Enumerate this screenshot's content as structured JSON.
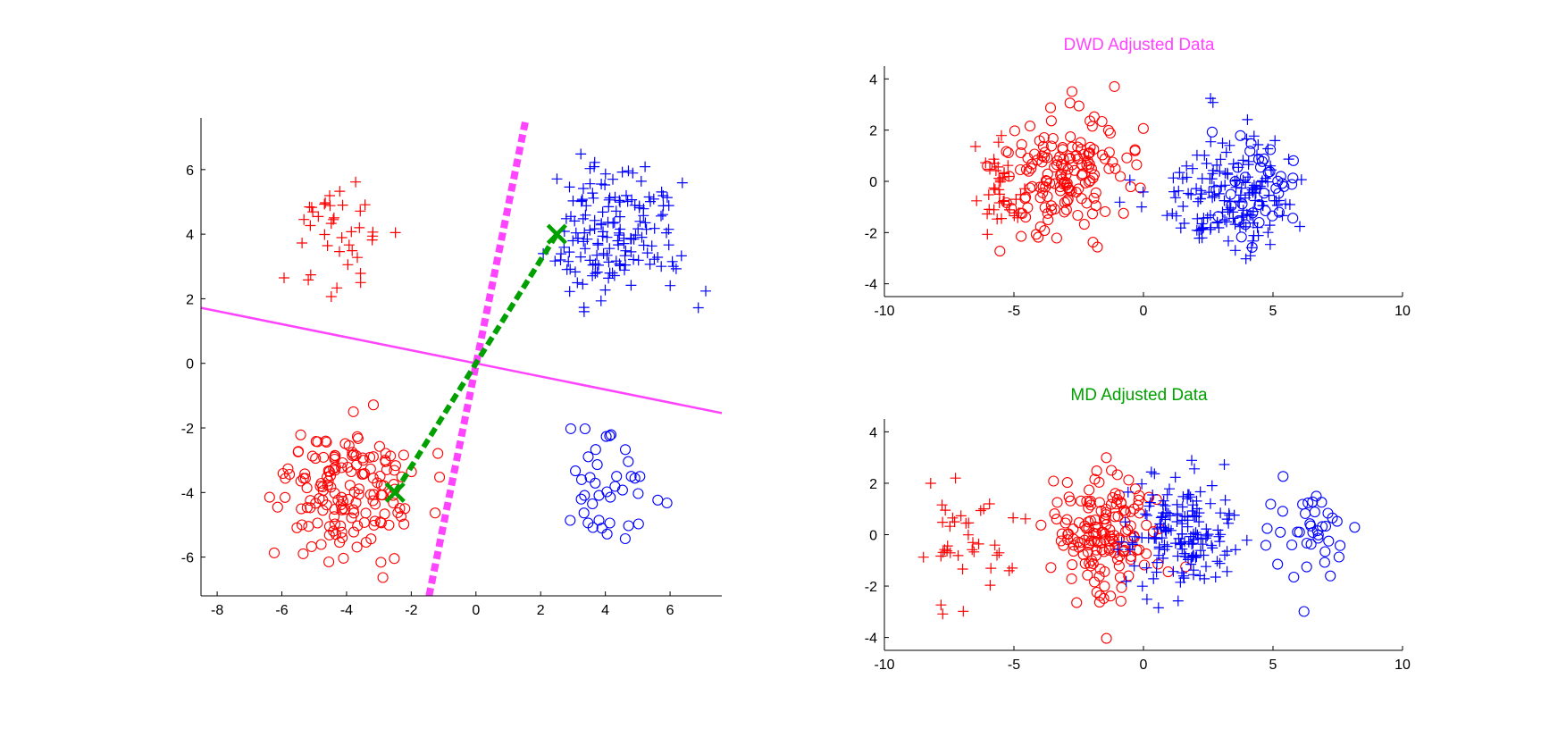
{
  "figure": {
    "background": "#ffffff",
    "colors": {
      "red": "#ff0000",
      "blue": "#0000ff",
      "magenta": "#ff44ff",
      "green": "#00a000",
      "axis": "#000000"
    }
  },
  "chart_data": [
    {
      "type": "scatter",
      "title": "",
      "xlabel": "",
      "ylabel": "",
      "xlim": [
        -8.5,
        7.6
      ],
      "ylim": [
        -7.2,
        7.6
      ],
      "xticks": [
        -8,
        -6,
        -4,
        -2,
        0,
        2,
        4,
        6
      ],
      "yticks": [
        -6,
        -4,
        -2,
        0,
        2,
        4,
        6
      ],
      "xtick_labels": [
        "-8",
        "-6",
        "-4",
        "-2",
        "0",
        "2",
        "4",
        "6"
      ],
      "ytick_labels": [
        "-6",
        "-4",
        "-2",
        "0",
        "2",
        "4",
        "6"
      ],
      "grid": false,
      "clusters": [
        {
          "color": "#ff0000",
          "marker": "plus",
          "center": [
            -4.2,
            4.2
          ],
          "spread": [
            0.75,
            1.05
          ],
          "count": 40,
          "seed": 11
        },
        {
          "color": "#0000ff",
          "marker": "plus",
          "center": [
            4.2,
            4.0
          ],
          "spread": [
            1.05,
            1.05
          ],
          "count": 160,
          "seed": 12
        },
        {
          "color": "#ff0000",
          "marker": "circle",
          "center": [
            -4.0,
            -4.0
          ],
          "spread": [
            1.05,
            1.05
          ],
          "count": 160,
          "seed": 13
        },
        {
          "color": "#0000ff",
          "marker": "circle",
          "center": [
            4.0,
            -4.0
          ],
          "spread": [
            0.9,
            0.9
          ],
          "count": 40,
          "seed": 14
        }
      ],
      "lines": [
        {
          "name": "",
          "color": "#ff44ff",
          "style": "solid",
          "width": 2.5,
          "points": [
            [
              -8.5,
              1.72
            ],
            [
              7.6,
              -1.54
            ]
          ]
        },
        {
          "name": "",
          "color": "#ff44ff",
          "style": "dashed",
          "width": 8,
          "points": [
            [
              -1.45,
              -7.2
            ],
            [
              1.55,
              7.6
            ]
          ]
        },
        {
          "name": "",
          "color": "#00a000",
          "style": "dashed",
          "width": 6,
          "points": [
            [
              -2.5,
              -4.0
            ],
            [
              2.5,
              4.0
            ]
          ]
        }
      ],
      "markers": [
        {
          "color": "#00a000",
          "marker": "x",
          "points": [
            [
              -2.5,
              -4.0
            ],
            [
              2.5,
              4.0
            ]
          ]
        }
      ]
    },
    {
      "type": "scatter",
      "title": "DWD Adjusted Data",
      "title_color": "#ff44ff",
      "xlabel": "",
      "ylabel": "",
      "xlim": [
        -10,
        10
      ],
      "ylim": [
        -4.5,
        4.5
      ],
      "xticks": [
        -10,
        -5,
        0,
        5,
        10
      ],
      "yticks": [
        -4,
        -2,
        0,
        2,
        4
      ],
      "xtick_labels": [
        "-10",
        "-5",
        "0",
        "5",
        "10"
      ],
      "ytick_labels": [
        "-4",
        "-2",
        "0",
        "2",
        "4"
      ],
      "grid": false,
      "clusters": [
        {
          "color": "#ff0000",
          "marker": "circle",
          "center": [
            -3.0,
            0.3
          ],
          "spread": [
            1.2,
            1.2
          ],
          "count": 160,
          "seed": 21
        },
        {
          "color": "#ff0000",
          "marker": "plus",
          "center": [
            -5.6,
            -0.5
          ],
          "spread": [
            0.5,
            1.0
          ],
          "count": 40,
          "seed": 22
        },
        {
          "color": "#0000ff",
          "marker": "plus",
          "center": [
            3.4,
            -0.5
          ],
          "spread": [
            1.3,
            1.1
          ],
          "count": 160,
          "seed": 23
        },
        {
          "color": "#0000ff",
          "marker": "circle",
          "center": [
            4.5,
            0.0
          ],
          "spread": [
            0.9,
            1.0
          ],
          "count": 40,
          "seed": 24
        }
      ],
      "lines": [],
      "markers": []
    },
    {
      "type": "scatter",
      "title": "MD Adjusted Data",
      "title_color": "#00a000",
      "xlabel": "",
      "ylabel": "",
      "xlim": [
        -10,
        10
      ],
      "ylim": [
        -4.5,
        4.5
      ],
      "xticks": [
        -10,
        -5,
        0,
        5,
        10
      ],
      "yticks": [
        -4,
        -2,
        0,
        2,
        4
      ],
      "xtick_labels": [
        "-10",
        "-5",
        "0",
        "5",
        "10"
      ],
      "ytick_labels": [
        "-4",
        "-2",
        "0",
        "2",
        "4"
      ],
      "grid": false,
      "clusters": [
        {
          "color": "#ff0000",
          "marker": "plus",
          "center": [
            -6.5,
            -0.2
          ],
          "spread": [
            1.0,
            1.1
          ],
          "count": 40,
          "seed": 31
        },
        {
          "color": "#ff0000",
          "marker": "circle",
          "center": [
            -1.5,
            0.0
          ],
          "spread": [
            1.1,
            1.1
          ],
          "count": 160,
          "seed": 32
        },
        {
          "color": "#0000ff",
          "marker": "plus",
          "center": [
            1.5,
            0.0
          ],
          "spread": [
            1.1,
            1.1
          ],
          "count": 160,
          "seed": 33
        },
        {
          "color": "#0000ff",
          "marker": "circle",
          "center": [
            6.3,
            -0.1
          ],
          "spread": [
            1.0,
            1.0
          ],
          "count": 40,
          "seed": 34
        }
      ],
      "lines": [],
      "markers": []
    }
  ]
}
